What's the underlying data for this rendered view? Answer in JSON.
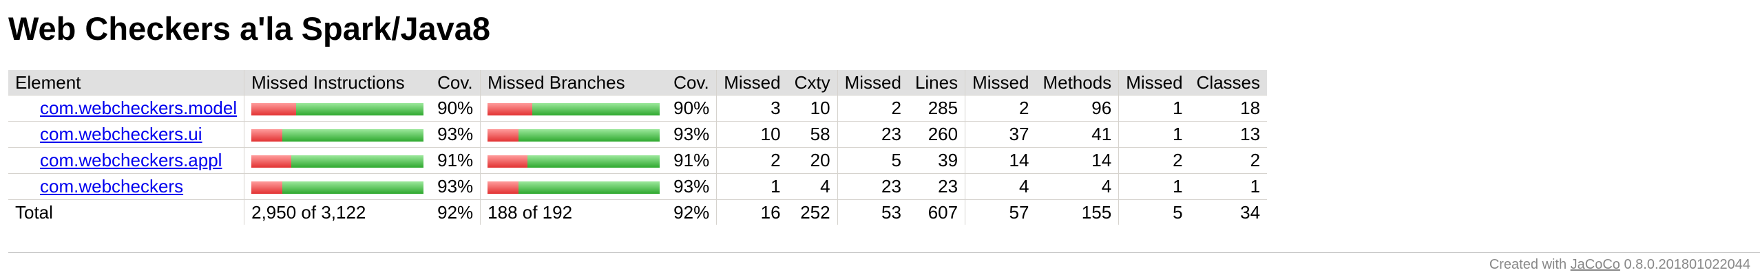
{
  "page": {
    "title": "Web Checkers a'la Spark/Java8"
  },
  "table": {
    "headers": {
      "element": "Element",
      "missed_instructions": "Missed Instructions",
      "cov1": "Cov.",
      "missed_branches": "Missed Branches",
      "cov2": "Cov.",
      "missed_cxty": "Missed",
      "cxty": "Cxty",
      "missed_lines": "Missed",
      "lines": "Lines",
      "missed_methods": "Missed",
      "methods": "Methods",
      "missed_classes": "Missed",
      "classes": "Classes"
    },
    "rows": [
      {
        "name": "com.webcheckers.model",
        "instr_cov": "90%",
        "instr_fraction": 0.9,
        "branch_cov": "90%",
        "branch_fraction": 0.9,
        "missed_cxty": "3",
        "cxty": "10",
        "missed_lines": "2",
        "lines": "285",
        "missed_methods": "2",
        "methods": "96",
        "missed_classes": "1",
        "classes": "18"
      },
      {
        "name": "com.webcheckers.ui",
        "instr_cov": "93%",
        "instr_fraction": 0.93,
        "branch_cov": "93%",
        "branch_fraction": 0.93,
        "missed_cxty": "10",
        "cxty": "58",
        "missed_lines": "23",
        "lines": "260",
        "missed_methods": "37",
        "methods": "41",
        "missed_classes": "1",
        "classes": "13"
      },
      {
        "name": "com.webcheckers.appl",
        "instr_cov": "91%",
        "instr_fraction": 0.91,
        "branch_cov": "91%",
        "branch_fraction": 0.91,
        "missed_cxty": "2",
        "cxty": "20",
        "missed_lines": "5",
        "lines": "39",
        "missed_methods": "14",
        "methods": "14",
        "missed_classes": "2",
        "classes": "2"
      },
      {
        "name": "com.webcheckers",
        "instr_cov": "93%",
        "instr_fraction": 0.93,
        "branch_cov": "93%",
        "branch_fraction": 0.93,
        "missed_cxty": "1",
        "cxty": "4",
        "missed_lines": "23",
        "lines": "23",
        "missed_methods": "4",
        "methods": "4",
        "missed_classes": "1",
        "classes": "1"
      }
    ],
    "total": {
      "label": "Total",
      "instructions": "2,950 of 3,122",
      "instr_cov": "92%",
      "branches": "188 of 192",
      "branch_cov": "92%",
      "missed_cxty": "16",
      "cxty": "252",
      "missed_lines": "53",
      "lines": "607",
      "missed_methods": "57",
      "methods": "155",
      "missed_classes": "5",
      "classes": "34"
    }
  },
  "footer": {
    "prefix": "Created with",
    "link": "JaCoCo",
    "version": "0.8.0.201801022044"
  },
  "colors": {
    "bar_red": "#e23232",
    "bar_green": "#2ea82e",
    "link": "#0000ee",
    "header_bg": "#e0e0e0"
  },
  "icons": {
    "bar_chart": "coverage-bar"
  }
}
